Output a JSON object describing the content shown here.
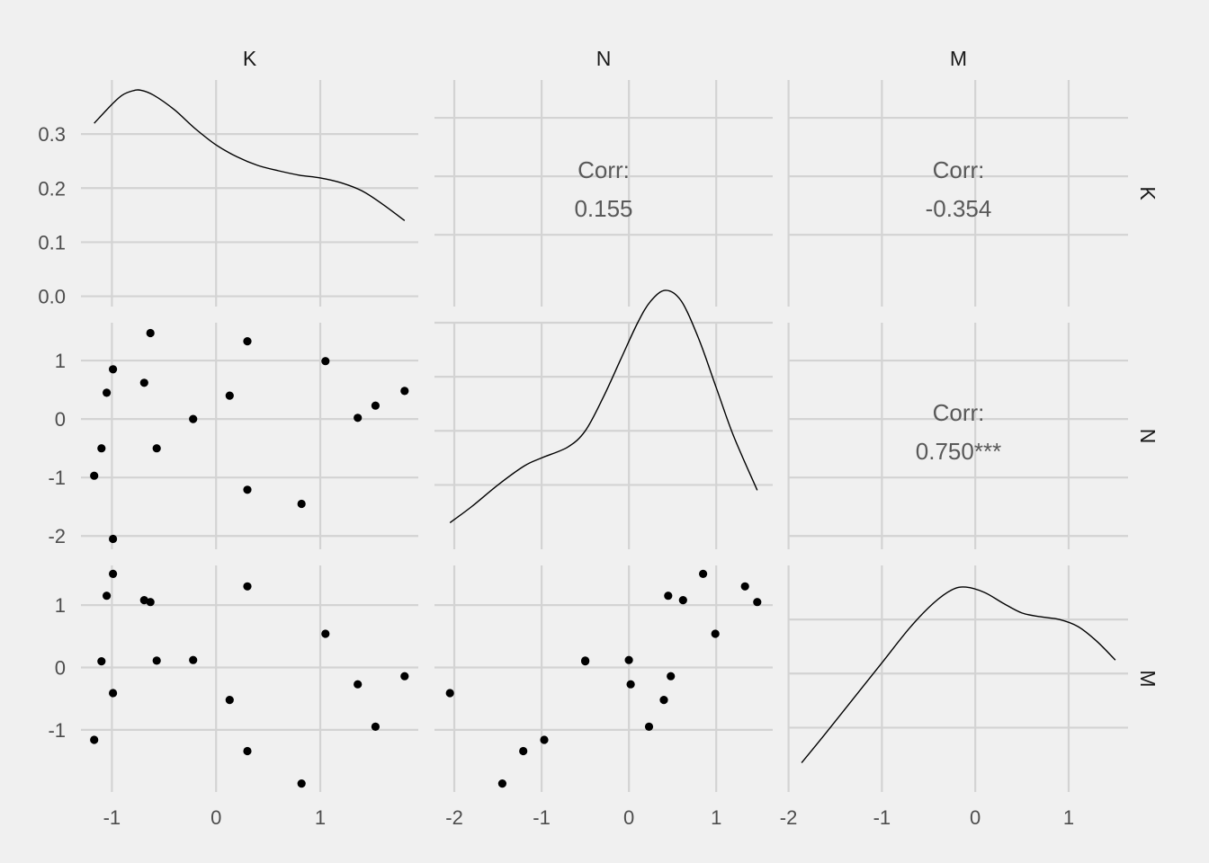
{
  "chart_data": {
    "type": "scatter-matrix",
    "variables": [
      "K",
      "N",
      "M"
    ],
    "points": {
      "K": [
        -1.17,
        -1.1,
        -1.05,
        -0.99,
        -0.99,
        -0.69,
        -0.63,
        -0.57,
        -0.22,
        0.13,
        0.3,
        0.3,
        0.82,
        1.05,
        1.36,
        1.53,
        1.81
      ],
      "N": [
        -0.97,
        -0.5,
        0.45,
        0.85,
        -2.05,
        0.62,
        1.47,
        -0.5,
        0.0,
        0.4,
        1.33,
        -1.21,
        -1.45,
        0.99,
        0.02,
        0.23,
        0.48
      ],
      "M": [
        -1.16,
        0.1,
        1.15,
        1.5,
        -0.41,
        1.08,
        1.05,
        0.11,
        0.12,
        -0.52,
        1.3,
        -1.34,
        -1.86,
        0.54,
        -0.27,
        -0.95,
        -0.14
      ]
    },
    "density_curves": {
      "K": {
        "x": [
          -1.17,
          -1.0,
          -0.9,
          -0.8,
          -0.72,
          -0.6,
          -0.4,
          -0.2,
          0.0,
          0.2,
          0.4,
          0.6,
          0.8,
          1.0,
          1.2,
          1.4,
          1.6,
          1.81
        ],
        "y": [
          0.32,
          0.355,
          0.372,
          0.38,
          0.381,
          0.372,
          0.345,
          0.31,
          0.28,
          0.258,
          0.242,
          0.232,
          0.224,
          0.219,
          0.21,
          0.195,
          0.17,
          0.14
        ]
      },
      "N": {
        "x": [
          -2.05,
          -1.8,
          -1.5,
          -1.2,
          -1.0,
          -0.7,
          -0.5,
          -0.3,
          -0.1,
          0.1,
          0.25,
          0.42,
          0.6,
          0.8,
          1.0,
          1.2,
          1.47
        ],
        "y": [
          0.03,
          0.06,
          0.1,
          0.135,
          0.15,
          0.17,
          0.2,
          0.26,
          0.33,
          0.4,
          0.44,
          0.46,
          0.44,
          0.37,
          0.28,
          0.19,
          0.09
        ]
      },
      "M": {
        "x": [
          -1.86,
          -1.6,
          -1.3,
          -1.0,
          -0.7,
          -0.45,
          -0.25,
          -0.1,
          0.1,
          0.3,
          0.5,
          0.7,
          0.9,
          1.1,
          1.3,
          1.5
        ],
        "y": [
          0.035,
          0.09,
          0.155,
          0.22,
          0.285,
          0.33,
          0.355,
          0.36,
          0.35,
          0.33,
          0.312,
          0.305,
          0.3,
          0.287,
          0.26,
          0.225
        ]
      }
    },
    "correlations": [
      {
        "pair": "K-N",
        "label": "Corr:",
        "value": "0.155"
      },
      {
        "pair": "K-M",
        "label": "Corr:",
        "value": "-0.354"
      },
      {
        "pair": "N-M",
        "label": "Corr:",
        "value": "0.750***"
      }
    ],
    "col_strips": [
      "K",
      "N",
      "M"
    ],
    "row_strips": [
      "K",
      "N",
      "M"
    ],
    "axis_ticks": {
      "K": [
        -1,
        0,
        1
      ],
      "N": [
        -2,
        -1,
        0,
        1
      ],
      "M": [
        -2,
        -1,
        0,
        1
      ]
    },
    "tick_labels": {
      "K": [
        "-1",
        "0",
        "1"
      ],
      "N": [
        "-2",
        "-1",
        "0",
        "1"
      ],
      "M": [
        "-2",
        "-1",
        "0",
        "1"
      ]
    },
    "density_ticks": [
      0.0,
      0.1,
      0.2,
      0.3
    ],
    "density_tick_labels": [
      "0.0",
      "0.1",
      "0.2",
      "0.3"
    ],
    "grid": true,
    "colors": {
      "background": "#f0f0f0",
      "grid": "#d3d3d3",
      "points": "#000000",
      "text": "#4d4d4d"
    }
  }
}
